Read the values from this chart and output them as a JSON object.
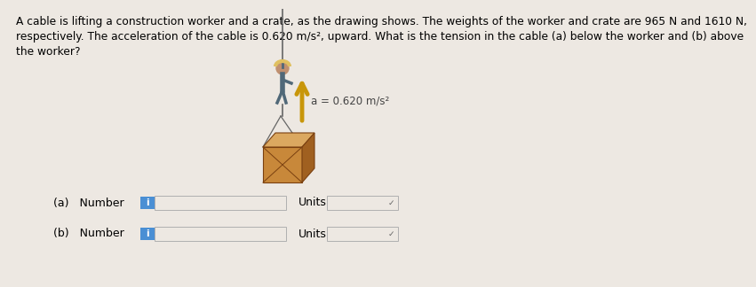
{
  "title_text": "A cable is lifting a construction worker and a crate, as the drawing shows. The weights of the worker and crate are 965 N and 1610 N,\nrespectively. The acceleration of the cable is 0.620 m/s², upward. What is the tension in the cable (a) below the worker and (b) above\nthe worker?",
  "acceleration_label": "a = 0.620 m/s²",
  "label_a": "(a)   Number",
  "label_b": "(b)   Number",
  "units_label": "Units",
  "background_color": "#ede8e2",
  "info_button_color": "#4a8fd4",
  "input_box_color": "#ede8e2",
  "units_box_color": "#ede8e2",
  "input_box_border": "#b0b0b0",
  "arrow_color": "#c8960a",
  "cable_color": "#666666",
  "crate_front_color": "#c8883a",
  "crate_top_color": "#dba860",
  "crate_right_color": "#a06020",
  "crate_line_color": "#7a4010",
  "worker_body_color": "#506878",
  "worker_head_color": "#c09070",
  "title_fontsize": 8.8,
  "label_fontsize": 9.0,
  "accel_fontsize": 8.5,
  "figure_width": 7.0,
  "figure_height": 3.04
}
